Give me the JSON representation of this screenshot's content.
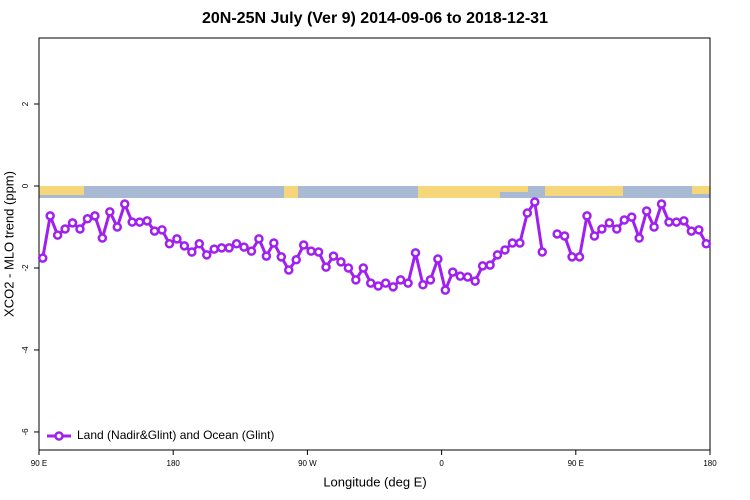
{
  "chart_data": {
    "type": "line",
    "title": "20N-25N July (Ver 9)   2014-09-06 to 2018-12-31",
    "xlabel": "Longitude (deg E)",
    "ylabel": "XCO2 - MLO trend (ppm)",
    "xlim": [
      90,
      540
    ],
    "ylim": [
      -6.44,
      3.61
    ],
    "xticks": [
      {
        "value": 90,
        "label": "90 E"
      },
      {
        "value": 180,
        "label": "180"
      },
      {
        "value": 270,
        "label": "90 W"
      },
      {
        "value": 360,
        "label": "0"
      },
      {
        "value": 450,
        "label": "90 E"
      },
      {
        "value": 540,
        "label": "180"
      }
    ],
    "yticks": [
      -6,
      -4,
      -2,
      0,
      2
    ],
    "legend": "lower left",
    "x": [
      92.5,
      97.5,
      102.5,
      107.5,
      112.5,
      117.5,
      122.5,
      127.5,
      132.5,
      137.5,
      142.5,
      147.5,
      152.5,
      157.5,
      162.5,
      167.5,
      172.5,
      177.5,
      182.5,
      187.5,
      192.5,
      197.5,
      202.5,
      207.5,
      212.5,
      217.5,
      222.5,
      227.5,
      232.5,
      237.5,
      242.5,
      247.5,
      252.5,
      257.5,
      262.5,
      267.5,
      272.5,
      277.5,
      282.5,
      287.5,
      292.5,
      297.5,
      302.5,
      307.5,
      312.5,
      317.5,
      322.5,
      327.5,
      332.5,
      337.5,
      342.5,
      347.5,
      352.5,
      357.5,
      362.5,
      367.5,
      372.5,
      377.5,
      382.5,
      387.5,
      392.5,
      397.5,
      402.5,
      407.5,
      412.5,
      417.5,
      422.5,
      427.5,
      432.5,
      437.5,
      442.5,
      447.5,
      452.5,
      457.5,
      462.5,
      467.5,
      472.5,
      477.5,
      482.5,
      487.5,
      492.5,
      497.5,
      502.5,
      507.5,
      512.5,
      517.5,
      522.5,
      527.5,
      532.5,
      537.5
    ],
    "series": [
      {
        "name": "Land (Nadir&Glint) and Ocean (Glint)",
        "color": "#a020f0",
        "values": [
          -1.76,
          -0.73,
          -1.2,
          -1.05,
          -0.9,
          -1.05,
          -0.8,
          -0.73,
          -1.27,
          -0.63,
          -1.0,
          -0.44,
          -0.88,
          -0.88,
          -0.85,
          -1.1,
          -1.07,
          -1.41,
          -1.29,
          -1.46,
          -1.61,
          -1.41,
          -1.68,
          -1.54,
          -1.51,
          -1.51,
          -1.41,
          -1.49,
          -1.59,
          -1.29,
          -1.71,
          -1.39,
          -1.73,
          -2.05,
          -1.8,
          -1.44,
          -1.59,
          -1.61,
          -1.98,
          -1.71,
          -1.85,
          -2.0,
          -2.29,
          -2.0,
          -2.37,
          -2.44,
          -2.37,
          -2.46,
          -2.29,
          -2.37,
          -1.63,
          -2.41,
          -2.29,
          -1.78,
          -2.54,
          -2.1,
          -2.2,
          -2.22,
          -2.32,
          -1.95,
          -1.93,
          -1.68,
          -1.56,
          -1.39,
          -1.39,
          -0.66,
          -0.39,
          -1.61,
          null,
          -1.17,
          -1.22,
          -1.73,
          -1.73,
          -0.73,
          -1.22,
          -1.05,
          -0.9,
          -1.05,
          -0.83,
          -0.76,
          -1.27,
          -0.61,
          -1.0,
          -0.44,
          -0.88,
          -0.88,
          -0.85,
          -1.1,
          -1.07,
          -1.41
        ]
      }
    ]
  }
}
